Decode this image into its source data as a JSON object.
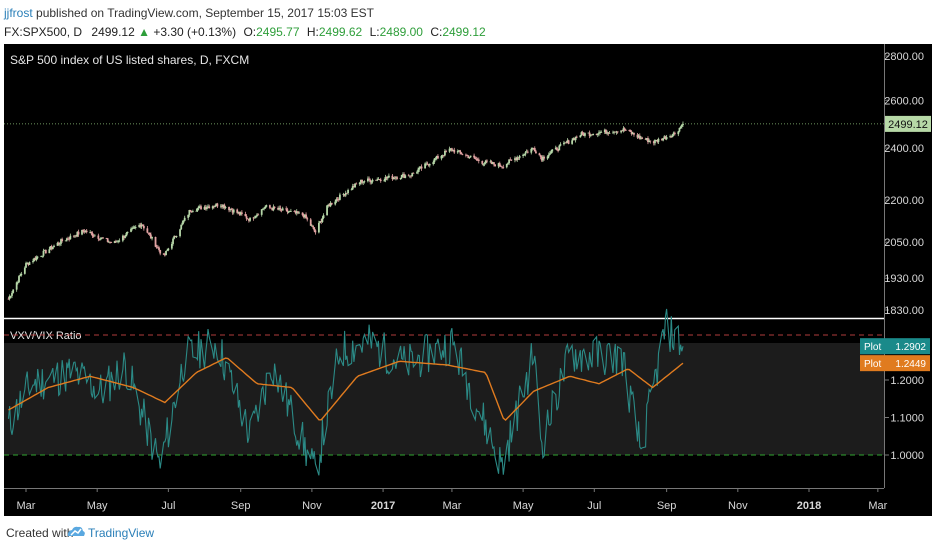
{
  "header": {
    "author": "jjfrost",
    "published_text": "published on TradingView.com, September 15, 2017 15:03 EST",
    "symbol": "FX:SPX500, D",
    "last": "2499.12",
    "change_arrow": "▲",
    "change": "+3.30 (+0.13%)",
    "open_label": "O:",
    "open": "2495.77",
    "high_label": "H:",
    "high": "2499.62",
    "low_label": "L:",
    "low": "2489.00",
    "close_label": "C:",
    "close": "2499.12"
  },
  "footer": {
    "created_with": "Created with",
    "brand": "TradingView",
    "logo_icon": "tradingview-logo-icon"
  },
  "colors": {
    "background": "#000000",
    "up_candle": "#b6d7a8",
    "down_candle": "#e2a3a3",
    "ratio_line": "#2b8a86",
    "ma_line": "#e07b1f",
    "upper_band": "#b03c3c",
    "lower_band": "#2fa52f",
    "price_label_bg": "#b7d9a7",
    "plot1_label_bg": "#1a8a8a",
    "plot2_label_bg": "#e07b1f"
  },
  "chart_data": [
    {
      "type": "candlestick",
      "title": "S&P 500 index of US listed shares, D, FXCM",
      "x_ticks": [
        "Mar",
        "May",
        "Jul",
        "Sep",
        "Nov",
        "2017",
        "Mar",
        "May",
        "Jul",
        "Sep",
        "Nov",
        "2018",
        "Mar"
      ],
      "y_ticks": [
        "2800.00",
        "2600.00",
        "2400.00",
        "2200.00",
        "2050.00",
        "1930.00",
        "1830.00"
      ],
      "y_tick_values": [
        2800,
        2600,
        2400,
        2200,
        2050,
        1930,
        1830
      ],
      "log_scale": true,
      "ylim": [
        1780,
        2880
      ],
      "last_price_label": "2499.12",
      "last_price": 2499.12,
      "series_path": [
        {
          "date": "2016-02-15",
          "close": 1865
        },
        {
          "date": "2016-03-01",
          "close": 1975
        },
        {
          "date": "2016-04-01",
          "close": 2055
        },
        {
          "date": "2016-04-20",
          "close": 2090
        },
        {
          "date": "2016-05-15",
          "close": 2045
        },
        {
          "date": "2016-06-08",
          "close": 2115
        },
        {
          "date": "2016-06-27",
          "close": 2000
        },
        {
          "date": "2016-07-20",
          "close": 2165
        },
        {
          "date": "2016-08-15",
          "close": 2185
        },
        {
          "date": "2016-09-09",
          "close": 2130
        },
        {
          "date": "2016-09-22",
          "close": 2175
        },
        {
          "date": "2016-10-25",
          "close": 2145
        },
        {
          "date": "2016-11-04",
          "close": 2085
        },
        {
          "date": "2016-11-15",
          "close": 2180
        },
        {
          "date": "2016-12-13",
          "close": 2270
        },
        {
          "date": "2017-01-25",
          "close": 2295
        },
        {
          "date": "2017-02-28",
          "close": 2395
        },
        {
          "date": "2017-03-27",
          "close": 2345
        },
        {
          "date": "2017-04-13",
          "close": 2330
        },
        {
          "date": "2017-05-10",
          "close": 2400
        },
        {
          "date": "2017-05-17",
          "close": 2360
        },
        {
          "date": "2017-06-19",
          "close": 2455
        },
        {
          "date": "2017-07-27",
          "close": 2475
        },
        {
          "date": "2017-08-10",
          "close": 2440
        },
        {
          "date": "2017-08-21",
          "close": 2425
        },
        {
          "date": "2017-09-08",
          "close": 2460
        },
        {
          "date": "2017-09-15",
          "close": 2499.12
        }
      ]
    },
    {
      "type": "line",
      "title": "VXV/VIX Ratio",
      "y_ticks": [
        "1.2000",
        "1.1000",
        "1.0000"
      ],
      "y_tick_values": [
        1.2,
        1.1,
        1.0
      ],
      "ylim": [
        0.92,
        1.36
      ],
      "upper_band": 1.32,
      "lower_band": 1.0,
      "series": [
        {
          "name": "Plot",
          "label": "1.2902",
          "last": 1.2902,
          "values": [
            {
              "date": "2016-02-15",
              "value": 1.08
            },
            {
              "date": "2016-03-05",
              "value": 1.19
            },
            {
              "date": "2016-04-10",
              "value": 1.22
            },
            {
              "date": "2016-05-05",
              "value": 1.17
            },
            {
              "date": "2016-05-25",
              "value": 1.24
            },
            {
              "date": "2016-06-24",
              "value": 0.97
            },
            {
              "date": "2016-07-15",
              "value": 1.26
            },
            {
              "date": "2016-08-12",
              "value": 1.3
            },
            {
              "date": "2016-09-09",
              "value": 1.05
            },
            {
              "date": "2016-09-28",
              "value": 1.24
            },
            {
              "date": "2016-11-04",
              "value": 0.95
            },
            {
              "date": "2016-11-25",
              "value": 1.28
            },
            {
              "date": "2016-12-20",
              "value": 1.3
            },
            {
              "date": "2017-01-20",
              "value": 1.24
            },
            {
              "date": "2017-03-01",
              "value": 1.3
            },
            {
              "date": "2017-04-13",
              "value": 0.97
            },
            {
              "date": "2017-05-10",
              "value": 1.27
            },
            {
              "date": "2017-05-17",
              "value": 1.03
            },
            {
              "date": "2017-06-10",
              "value": 1.27
            },
            {
              "date": "2017-07-25",
              "value": 1.26
            },
            {
              "date": "2017-08-10",
              "value": 1.01
            },
            {
              "date": "2017-08-31",
              "value": 1.34
            },
            {
              "date": "2017-09-15",
              "value": 1.2902
            }
          ]
        },
        {
          "name": "Plot",
          "label": "1.2449",
          "last": 1.2449,
          "values": [
            {
              "date": "2016-02-15",
              "value": 1.12
            },
            {
              "date": "2016-03-20",
              "value": 1.18
            },
            {
              "date": "2016-04-25",
              "value": 1.21
            },
            {
              "date": "2016-06-01",
              "value": 1.18
            },
            {
              "date": "2016-06-28",
              "value": 1.14
            },
            {
              "date": "2016-07-25",
              "value": 1.22
            },
            {
              "date": "2016-08-20",
              "value": 1.26
            },
            {
              "date": "2016-09-15",
              "value": 1.19
            },
            {
              "date": "2016-10-15",
              "value": 1.18
            },
            {
              "date": "2016-11-08",
              "value": 1.09
            },
            {
              "date": "2016-12-10",
              "value": 1.21
            },
            {
              "date": "2017-01-15",
              "value": 1.25
            },
            {
              "date": "2017-02-25",
              "value": 1.24
            },
            {
              "date": "2017-03-30",
              "value": 1.22
            },
            {
              "date": "2017-04-15",
              "value": 1.09
            },
            {
              "date": "2017-05-10",
              "value": 1.17
            },
            {
              "date": "2017-06-10",
              "value": 1.21
            },
            {
              "date": "2017-07-05",
              "value": 1.19
            },
            {
              "date": "2017-07-30",
              "value": 1.23
            },
            {
              "date": "2017-08-20",
              "value": 1.18
            },
            {
              "date": "2017-09-15",
              "value": 1.2449
            }
          ]
        }
      ]
    }
  ]
}
